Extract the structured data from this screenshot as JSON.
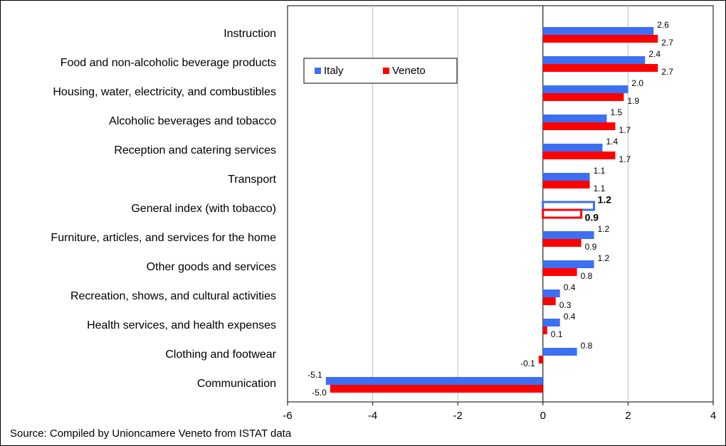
{
  "chart_data": {
    "type": "bar",
    "orientation": "horizontal",
    "categories": [
      "Instruction",
      "Food and non-alcoholic beverage products",
      "Housing, water, electricity, and combustibles",
      "Alcoholic beverages and tobacco",
      "Reception and catering services",
      "Transport",
      "General index (with tobacco)",
      "Furniture, articles, and services for the home",
      "Other goods and services",
      "Recreation, shows, and cultural activities",
      "Health services, and health expenses",
      "Clothing and footwear",
      "Communication"
    ],
    "series": [
      {
        "name": "Italy",
        "color": "#3d6ff2",
        "values": [
          2.6,
          2.4,
          2.0,
          1.5,
          1.4,
          1.1,
          1.2,
          1.2,
          1.2,
          0.4,
          0.4,
          0.8,
          -5.1
        ],
        "value_labels": [
          "2.6",
          "2.4",
          "2.0",
          "1.5",
          "1.4",
          "1.1",
          "1.2",
          "1.2",
          "1.2",
          "0.4",
          "0.4",
          "0.8",
          "-5.1"
        ]
      },
      {
        "name": "Veneto",
        "color": "#ff0000",
        "values": [
          2.7,
          2.7,
          1.9,
          1.7,
          1.7,
          1.1,
          0.9,
          0.9,
          0.8,
          0.3,
          0.1,
          -0.1,
          -5.0
        ],
        "value_labels": [
          "2.7",
          "2.7",
          "1.9",
          "1.7",
          "1.7",
          "1.1",
          "0.9",
          "0.9",
          "0.8",
          "0.3",
          "0.1",
          "-0.1",
          "-5.0"
        ]
      }
    ],
    "highlight_category": "General index (with tobacco)",
    "xlim": [
      -6,
      4
    ],
    "xticks": [
      -6,
      -4,
      -2,
      0,
      2,
      4
    ],
    "grid": true,
    "legend": "upper left",
    "source": "Source: Compiled by Unioncamere Veneto from ISTAT data"
  }
}
